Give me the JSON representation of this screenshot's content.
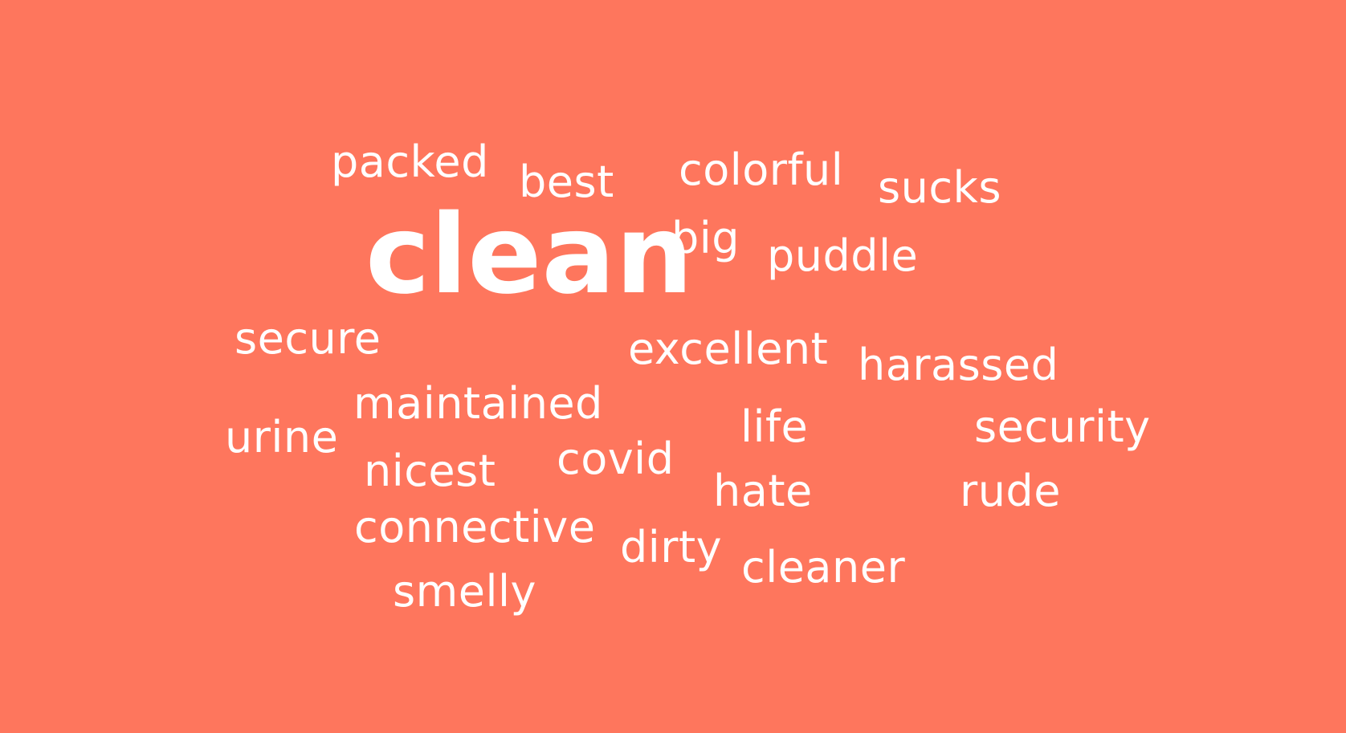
{
  "word_cloud": {
    "words": [
      {
        "text": "clean",
        "weight": 1.0
      },
      {
        "text": "packed",
        "weight": 0.4
      },
      {
        "text": "best",
        "weight": 0.4
      },
      {
        "text": "colorful",
        "weight": 0.4
      },
      {
        "text": "sucks",
        "weight": 0.4
      },
      {
        "text": "big",
        "weight": 0.4
      },
      {
        "text": "puddle",
        "weight": 0.4
      },
      {
        "text": "secure",
        "weight": 0.4
      },
      {
        "text": "excellent",
        "weight": 0.4
      },
      {
        "text": "harassed",
        "weight": 0.4
      },
      {
        "text": "maintained",
        "weight": 0.4
      },
      {
        "text": "urine",
        "weight": 0.4
      },
      {
        "text": "life",
        "weight": 0.4
      },
      {
        "text": "security",
        "weight": 0.4
      },
      {
        "text": "covid",
        "weight": 0.4
      },
      {
        "text": "nicest",
        "weight": 0.4
      },
      {
        "text": "hate",
        "weight": 0.4
      },
      {
        "text": "rude",
        "weight": 0.4
      },
      {
        "text": "connective",
        "weight": 0.4
      },
      {
        "text": "dirty",
        "weight": 0.4
      },
      {
        "text": "cleaner",
        "weight": 0.4
      },
      {
        "text": "smelly",
        "weight": 0.4
      }
    ]
  },
  "colors": {
    "background": "#fe765d",
    "text": "#ffffff"
  }
}
